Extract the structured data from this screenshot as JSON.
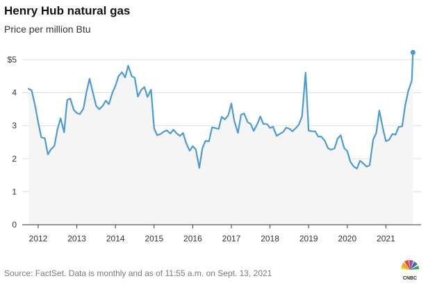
{
  "title": "Henry Hub natural gas",
  "subtitle": "Price per million Btu",
  "source": "Source: FactSet. Data is monthly and as of 11:55 a.m. on Sept. 13, 2021",
  "logo_text": "CNBC",
  "colors": {
    "line": "#4a9ad6",
    "fill": "#f5f5f5",
    "grid": "#dddddd",
    "axis": "#333333"
  },
  "chart_data": {
    "type": "line",
    "title": "Henry Hub natural gas",
    "subtitle": "Price per million Btu",
    "xlabel": "",
    "ylabel": "Price per million Btu",
    "xlim": [
      2011.7,
      2021.8
    ],
    "ylim": [
      0,
      5.2
    ],
    "yticks": [
      0,
      1,
      2,
      3,
      4,
      5
    ],
    "ytick_labels": [
      "0",
      "1",
      "2",
      "3",
      "4",
      "$5"
    ],
    "xticks": [
      2012,
      2013,
      2014,
      2015,
      2016,
      2017,
      2018,
      2019,
      2020,
      2021
    ],
    "xtick_labels": [
      "2012",
      "2013",
      "2014",
      "2015",
      "2016",
      "2017",
      "2018",
      "2019",
      "2020",
      "2021"
    ],
    "grid": true,
    "series": [
      {
        "name": "Henry Hub natural gas",
        "x": [
          2011.75,
          2011.83,
          2011.92,
          2012.0,
          2012.08,
          2012.17,
          2012.25,
          2012.33,
          2012.42,
          2012.5,
          2012.58,
          2012.67,
          2012.75,
          2012.83,
          2012.92,
          2013.0,
          2013.08,
          2013.17,
          2013.25,
          2013.33,
          2013.42,
          2013.5,
          2013.58,
          2013.67,
          2013.75,
          2013.83,
          2013.92,
          2014.0,
          2014.08,
          2014.17,
          2014.25,
          2014.33,
          2014.42,
          2014.5,
          2014.58,
          2014.67,
          2014.75,
          2014.83,
          2014.92,
          2015.0,
          2015.08,
          2015.17,
          2015.25,
          2015.33,
          2015.42,
          2015.5,
          2015.58,
          2015.67,
          2015.75,
          2015.83,
          2015.92,
          2016.0,
          2016.08,
          2016.17,
          2016.25,
          2016.33,
          2016.42,
          2016.5,
          2016.58,
          2016.67,
          2016.75,
          2016.83,
          2016.92,
          2017.0,
          2017.08,
          2017.17,
          2017.25,
          2017.33,
          2017.42,
          2017.5,
          2017.58,
          2017.67,
          2017.75,
          2017.83,
          2017.92,
          2018.0,
          2018.08,
          2018.17,
          2018.25,
          2018.33,
          2018.42,
          2018.5,
          2018.58,
          2018.67,
          2018.75,
          2018.83,
          2018.92,
          2019.0,
          2019.08,
          2019.17,
          2019.25,
          2019.33,
          2019.42,
          2019.5,
          2019.58,
          2019.67,
          2019.75,
          2019.83,
          2019.92,
          2020.0,
          2020.08,
          2020.17,
          2020.25,
          2020.33,
          2020.42,
          2020.5,
          2020.58,
          2020.67,
          2020.75,
          2020.83,
          2020.92,
          2021.0,
          2021.08,
          2021.17,
          2021.25,
          2021.33,
          2021.42,
          2021.5,
          2021.58,
          2021.67,
          2021.7
        ],
        "y": [
          4.12,
          4.07,
          3.6,
          3.1,
          2.65,
          2.62,
          2.13,
          2.28,
          2.4,
          2.9,
          3.22,
          2.8,
          3.78,
          3.82,
          3.48,
          3.38,
          3.35,
          3.52,
          4.02,
          4.42,
          3.98,
          3.6,
          3.5,
          3.6,
          3.76,
          3.65,
          4.0,
          4.21,
          4.5,
          4.62,
          4.46,
          4.82,
          4.5,
          4.45,
          3.88,
          4.09,
          4.17,
          3.87,
          4.09,
          2.92,
          2.71,
          2.75,
          2.82,
          2.86,
          2.76,
          2.88,
          2.77,
          2.69,
          2.78,
          2.48,
          2.24,
          2.38,
          2.28,
          1.72,
          2.32,
          2.54,
          2.53,
          2.95,
          2.93,
          2.9,
          3.27,
          3.19,
          3.32,
          3.67,
          3.13,
          2.78,
          3.33,
          3.37,
          3.11,
          3.05,
          2.84,
          3.05,
          3.28,
          3.05,
          3.05,
          2.93,
          2.97,
          2.69,
          2.75,
          2.8,
          2.94,
          2.91,
          2.83,
          2.93,
          3.04,
          3.29,
          4.61,
          2.85,
          2.83,
          2.83,
          2.67,
          2.67,
          2.54,
          2.32,
          2.27,
          2.31,
          2.61,
          2.71,
          2.32,
          2.23,
          1.91,
          1.76,
          1.7,
          1.94,
          1.85,
          1.76,
          1.8,
          2.58,
          2.78,
          3.46,
          2.93,
          2.53,
          2.57,
          2.75,
          2.73,
          2.96,
          2.98,
          3.62,
          4.05,
          4.37,
          5.22
        ]
      }
    ],
    "last_point": {
      "x": 2021.7,
      "y": 5.22
    }
  }
}
